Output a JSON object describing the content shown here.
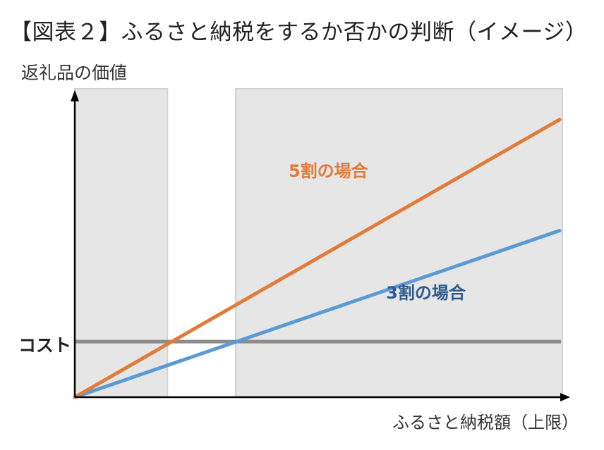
{
  "chart_data": {
    "type": "line",
    "title": "【図表２】ふるさと納税をするか否かの判断（イメージ）",
    "ylabel": "返礼品の価値",
    "xlabel": "ふるさと納税額（上限）",
    "x": [
      0,
      1
    ],
    "xlim": [
      0,
      1
    ],
    "ylim": [
      0,
      1
    ],
    "cost_label": "コスト",
    "cost_value": 0.18,
    "shaded_regions": [
      [
        0,
        0.19
      ],
      [
        0.33,
        1
      ]
    ],
    "series": [
      {
        "name": "5割の場合",
        "values": [
          0,
          0.9
        ],
        "color": "#E07B39"
      },
      {
        "name": "3割の場合",
        "values": [
          0,
          0.54
        ],
        "color": "#5B9BD5"
      }
    ],
    "colors": {
      "shade": "#e6e6e6",
      "cost_line": "#8c8c8c",
      "axis": "#000000",
      "label_5": "#E07B39",
      "label_3": "#2E5B8E"
    }
  }
}
